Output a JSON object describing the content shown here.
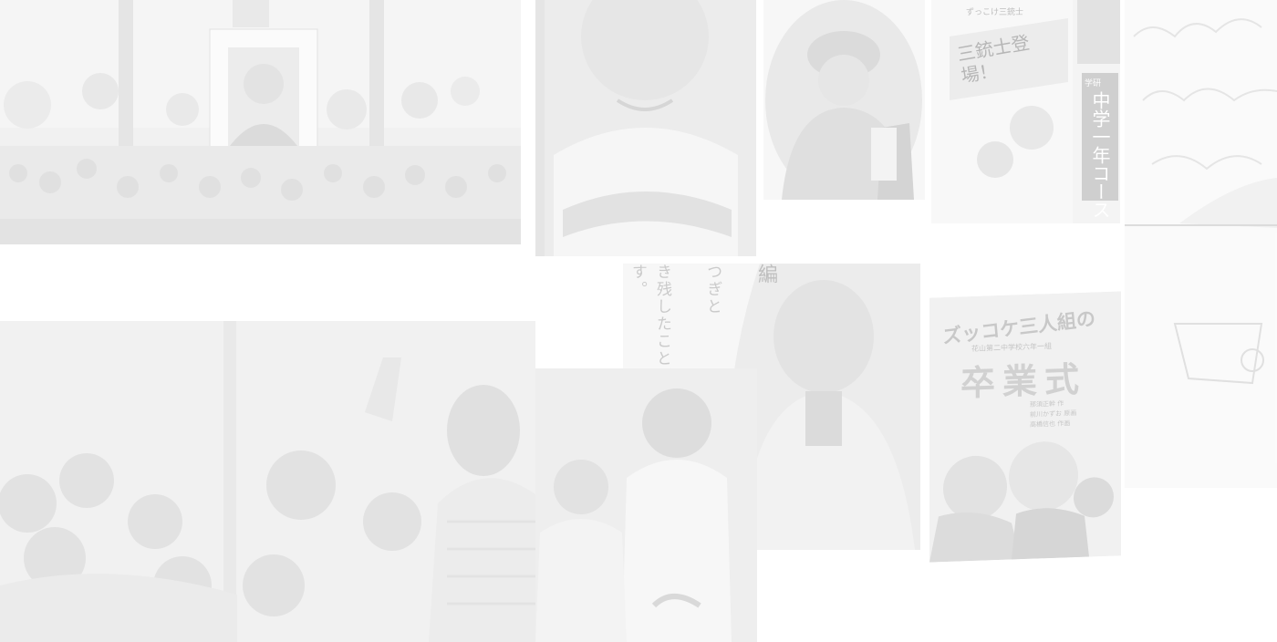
{
  "collage": {
    "colors": {
      "background": "#ffffff",
      "photo_light": "#f1f1f1",
      "photo_mid": "#e2e2e2",
      "photo_dark": "#c9c9c9",
      "ink": "#b4b4b4"
    },
    "cover_sanjushi": {
      "top_caption": "ずっこけ三銃士",
      "title": "三銃士登場！",
      "side_label": "中学一年コース",
      "side_small": "学研"
    },
    "cover_sotsugyoshiki": {
      "title_top": "ズッコケ三人組の",
      "subtitle": "花山第二中学校六年一組",
      "title_main": "卒業式",
      "credits": [
        "那須正幹 作",
        "前川かずお 原画",
        "高橋信也 作画"
      ]
    },
    "book_page": {
      "heading": "編",
      "lines": [
        "つぎと",
        "き残したことば",
        "す。"
      ]
    }
  }
}
